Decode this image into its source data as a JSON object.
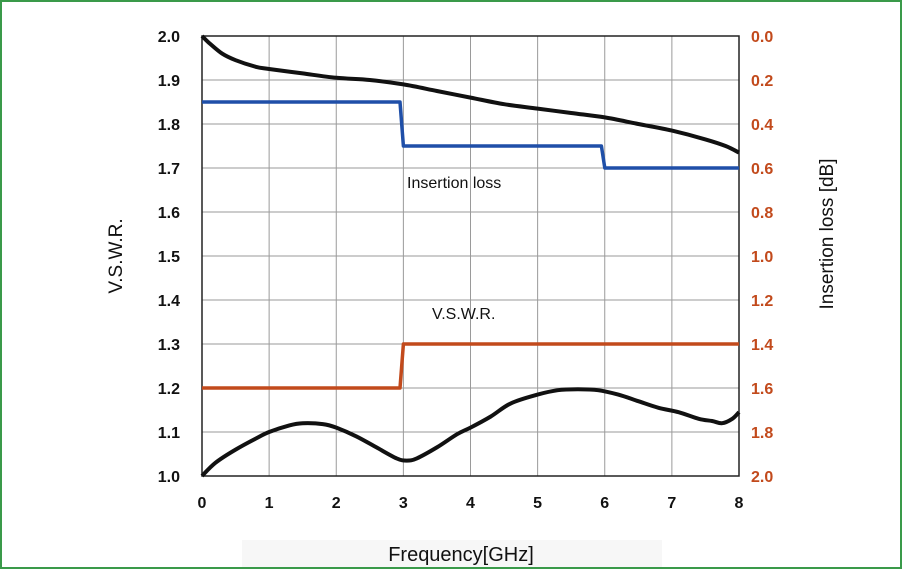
{
  "chart_data": {
    "type": "line",
    "title": "",
    "xlabel": "Frequency[GHz]",
    "ylabel_left": "V.S.W.R.",
    "ylabel_right": "Insertion loss [dB]",
    "xlim": [
      0,
      8
    ],
    "ylim_left": [
      1.0,
      2.0
    ],
    "ylim_right": [
      2.0,
      0.0
    ],
    "x_ticks": [
      "0",
      "1",
      "2",
      "3",
      "4",
      "5",
      "6",
      "7",
      "8"
    ],
    "y_left_ticks": [
      "1.0",
      "1.1",
      "1.2",
      "1.3",
      "1.4",
      "1.5",
      "1.6",
      "1.7",
      "1.8",
      "1.9",
      "2.0"
    ],
    "y_right_ticks": [
      "2.0",
      "1.8",
      "1.6",
      "1.4",
      "1.2",
      "1.0",
      "0.8",
      "0.6",
      "0.4",
      "0.2",
      "0.0"
    ],
    "grid": true,
    "colors": {
      "vswr_limit": "#c24a1c",
      "insertion_limit": "#1f4fa8",
      "measured": "#111111",
      "right_axis_text": "#c24a1c",
      "frame_border": "#3a9a4a"
    },
    "annotations": {
      "insertion_loss": "Insertion loss",
      "vswr": "V.S.W.R."
    },
    "series": [
      {
        "axis": "left",
        "style": "step",
        "x": [
          0,
          2.95,
          3.0,
          8
        ],
        "y": [
          1.2,
          1.2,
          1.3,
          1.3
        ]
      },
      {
        "axis": "right",
        "style": "step",
        "x": [
          0,
          2.95,
          3.0,
          5.95,
          6.0,
          8
        ],
        "y": [
          0.3,
          0.3,
          0.5,
          0.5,
          0.6,
          0.6
        ]
      },
      {
        "axis": "left",
        "style": "curve",
        "x": [
          0,
          0.2,
          0.5,
          0.8,
          1.0,
          1.3,
          1.5,
          1.8,
          2.0,
          2.3,
          2.6,
          2.9,
          3.05,
          3.2,
          3.5,
          3.8,
          4.0,
          4.3,
          4.6,
          5.0,
          5.3,
          5.6,
          5.9,
          6.2,
          6.5,
          6.8,
          7.1,
          7.4,
          7.6,
          7.75,
          7.9,
          8.0
        ],
        "y": [
          1.0,
          1.03,
          1.06,
          1.085,
          1.1,
          1.115,
          1.12,
          1.118,
          1.11,
          1.09,
          1.065,
          1.04,
          1.035,
          1.04,
          1.065,
          1.095,
          1.11,
          1.135,
          1.165,
          1.185,
          1.195,
          1.197,
          1.195,
          1.185,
          1.17,
          1.155,
          1.145,
          1.13,
          1.125,
          1.12,
          1.13,
          1.145
        ]
      },
      {
        "axis": "right",
        "style": "curve",
        "x": [
          0,
          0.1,
          0.3,
          0.5,
          0.8,
          1.0,
          1.5,
          2.0,
          2.5,
          3.0,
          3.5,
          4.0,
          4.5,
          5.0,
          5.5,
          6.0,
          6.5,
          7.0,
          7.5,
          7.8,
          8.0
        ],
        "y": [
          0.0,
          0.03,
          0.08,
          0.11,
          0.14,
          0.15,
          0.17,
          0.19,
          0.2,
          0.22,
          0.25,
          0.28,
          0.31,
          0.33,
          0.35,
          0.37,
          0.4,
          0.43,
          0.47,
          0.5,
          0.53
        ]
      }
    ]
  }
}
